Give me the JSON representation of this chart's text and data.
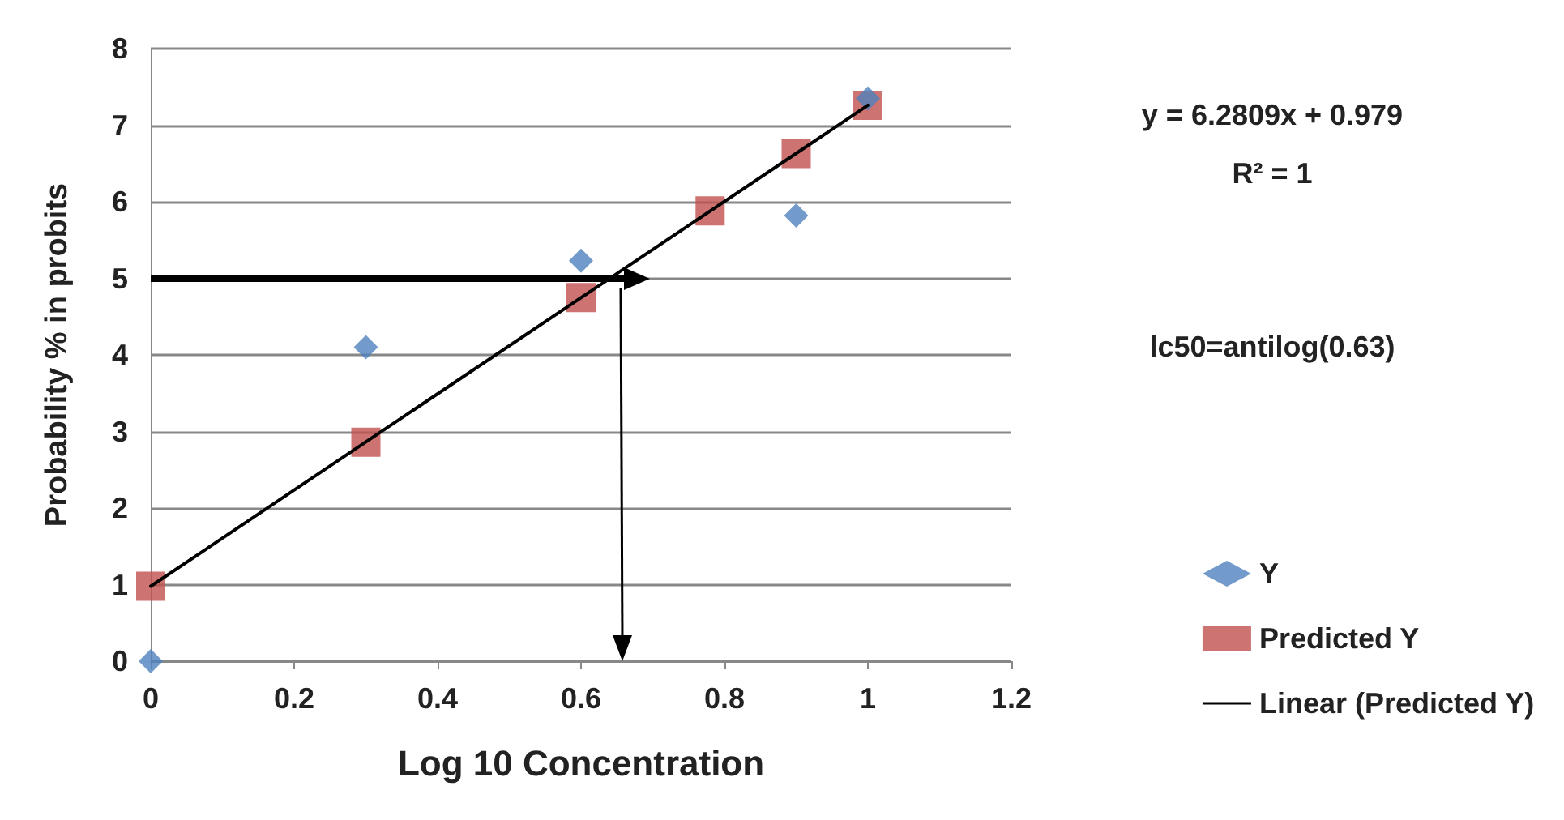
{
  "chart_data": {
    "type": "scatter",
    "xlabel": "Log 10 Concentration",
    "ylabel": "Probability % in probits",
    "xlim": [
      0,
      1.2
    ],
    "xticks": [
      0,
      0.2,
      0.4,
      0.6,
      0.8,
      1,
      1.2
    ],
    "ylim": [
      0,
      8
    ],
    "yticks": [
      0,
      1,
      2,
      3,
      4,
      5,
      6,
      7,
      8
    ],
    "grid": "y",
    "legend": "bottom right",
    "series": [
      {
        "name": "Y",
        "color": "#4f81bd",
        "marker": "diamond",
        "x": [
          0,
          0.3,
          0.6,
          0.78,
          0.9,
          1
        ],
        "values": [
          0,
          4.1,
          5.23,
          null,
          5.82,
          7.35
        ]
      },
      {
        "name": "Predicted Y",
        "color": "#c0504d",
        "marker": "square",
        "x": [
          0,
          0.3,
          0.6,
          0.78,
          0.9,
          1
        ],
        "values": [
          0.98,
          2.86,
          4.75,
          5.88,
          6.63,
          7.26
        ]
      },
      {
        "name": "Linear (Predicted Y)",
        "type": "line",
        "color": "#000000",
        "marker": "none",
        "line_style": "solid",
        "x": [
          0,
          1
        ],
        "values": [
          0.979,
          7.26
        ]
      }
    ],
    "annotations": [
      "y = 6.2809x + 0.979",
      "R² = 1",
      "lc50=antilog(0.63)"
    ]
  }
}
